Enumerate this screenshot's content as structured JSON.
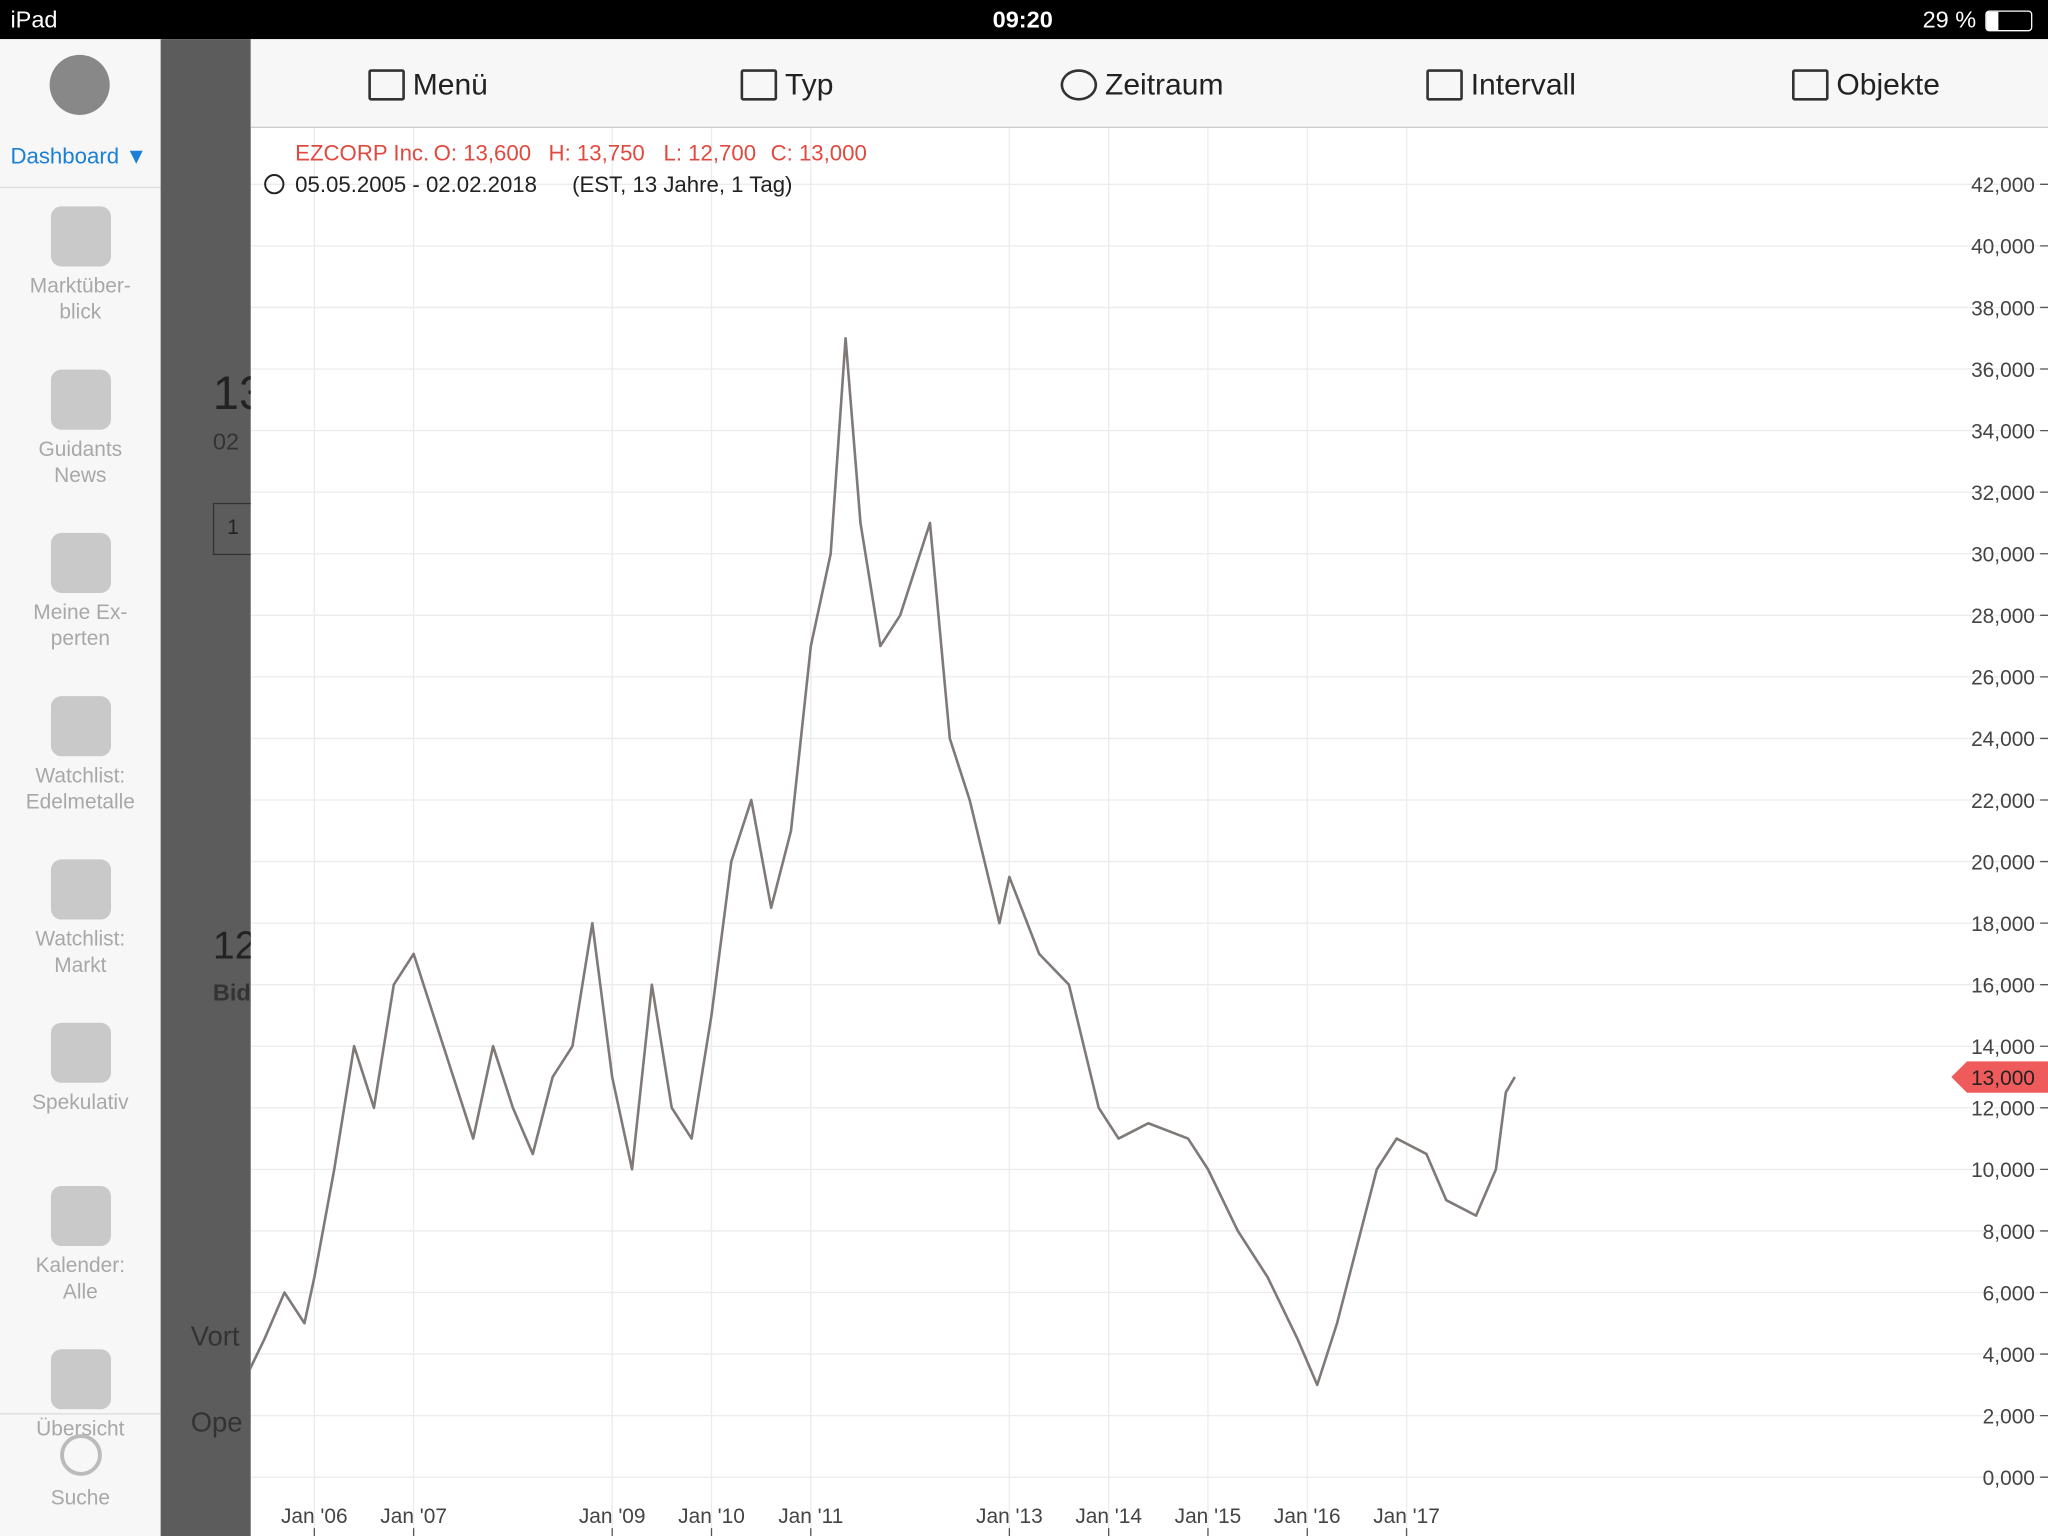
{
  "status_bar": {
    "device": "iPad",
    "time": "09:20",
    "battery": "29 %"
  },
  "sidebar": {
    "dashboard": "Dashboard",
    "items": [
      "Marktüber-\nblick",
      "Guidants\nNews",
      "Meine Ex-\nperten",
      "Watchlist:\nEdelmetalle",
      "Watchlist:\nMarkt",
      "Spekulativ",
      "Kalender:\nAlle",
      "Übersicht"
    ],
    "search": "Suche"
  },
  "background_panel": {
    "texts": [
      "13",
      "02",
      "1",
      "12",
      "Bid",
      "Vort",
      "Ope"
    ]
  },
  "toolbar": {
    "items": [
      "Menü",
      "Typ",
      "Zeitraum",
      "Intervall",
      "Objekte"
    ]
  },
  "chart_data": {
    "type": "line",
    "title": "EZCORP Inc.",
    "ohlc": [
      "O: 13,600",
      "H: 13,750",
      "L: 12,700",
      "C: 13,000"
    ],
    "range": "05.05.2005 - 02.02.2018",
    "range_detail": "(EST, 13 Jahre, 1 Tag)",
    "last_value": 13000,
    "last_label": "13,000",
    "series": [
      {
        "name": "EZCORP Inc.",
        "color": "#7f7a78",
        "x": [
          2005.35,
          2005.5,
          2005.7,
          2005.9,
          2006.0,
          2006.2,
          2006.4,
          2006.6,
          2006.8,
          2007.0,
          2007.2,
          2007.4,
          2007.6,
          2007.8,
          2008.0,
          2008.2,
          2008.4,
          2008.6,
          2008.8,
          2009.0,
          2009.2,
          2009.4,
          2009.6,
          2009.8,
          2010.0,
          2010.2,
          2010.4,
          2010.6,
          2010.8,
          2011.0,
          2011.2,
          2011.35,
          2011.5,
          2011.7,
          2011.9,
          2012.2,
          2012.4,
          2012.6,
          2012.9,
          2013.0,
          2013.3,
          2013.6,
          2013.9,
          2014.1,
          2014.4,
          2014.8,
          2015.0,
          2015.3,
          2015.6,
          2015.9,
          2016.1,
          2016.3,
          2016.5,
          2016.7,
          2016.9,
          2017.2,
          2017.4,
          2017.7,
          2017.9,
          2018.0,
          2018.09
        ],
        "values": [
          3500,
          4500,
          6000,
          5000,
          6500,
          10000,
          14000,
          12000,
          16000,
          17000,
          15000,
          13000,
          11000,
          14000,
          12000,
          10500,
          13000,
          14000,
          18000,
          13000,
          10000,
          16000,
          12000,
          11000,
          15000,
          20000,
          22000,
          18500,
          21000,
          27000,
          30000,
          37000,
          31000,
          27000,
          28000,
          31000,
          24000,
          22000,
          18000,
          19500,
          17000,
          16000,
          12000,
          11000,
          11500,
          11000,
          10000,
          8000,
          6500,
          4500,
          3000,
          5000,
          7500,
          10000,
          11000,
          10500,
          9000,
          8500,
          10000,
          12500,
          13000
        ]
      }
    ],
    "xlim": [
      2005.36,
      2023.46
    ],
    "xticks": [
      {
        "value": 2006,
        "label": "Jan '06"
      },
      {
        "value": 2007,
        "label": "Jan '07"
      },
      {
        "value": 2009,
        "label": "Jan '09"
      },
      {
        "value": 2010,
        "label": "Jan '10"
      },
      {
        "value": 2011,
        "label": "Jan '11"
      },
      {
        "value": 2013,
        "label": "Jan '13"
      },
      {
        "value": 2014,
        "label": "Jan '14"
      },
      {
        "value": 2015,
        "label": "Jan '15"
      },
      {
        "value": 2016,
        "label": "Jan '16"
      },
      {
        "value": 2017,
        "label": "Jan '17"
      }
    ],
    "ylim": [
      -1910,
      43830
    ],
    "yticks": [
      {
        "value": 0,
        "label": "0,000"
      },
      {
        "value": 2000,
        "label": "2,000"
      },
      {
        "value": 4000,
        "label": "4,000"
      },
      {
        "value": 6000,
        "label": "6,000"
      },
      {
        "value": 8000,
        "label": "8,000"
      },
      {
        "value": 10000,
        "label": "10,000"
      },
      {
        "value": 12000,
        "label": "12,000"
      },
      {
        "value": 14000,
        "label": "14,000"
      },
      {
        "value": 16000,
        "label": "16,000"
      },
      {
        "value": 18000,
        "label": "18,000"
      },
      {
        "value": 20000,
        "label": "20,000"
      },
      {
        "value": 22000,
        "label": "22,000"
      },
      {
        "value": 24000,
        "label": "24,000"
      },
      {
        "value": 26000,
        "label": "26,000"
      },
      {
        "value": 28000,
        "label": "28,000"
      },
      {
        "value": 30000,
        "label": "30,000"
      },
      {
        "value": 32000,
        "label": "32,000"
      },
      {
        "value": 34000,
        "label": "34,000"
      },
      {
        "value": 36000,
        "label": "36,000"
      },
      {
        "value": 38000,
        "label": "38,000"
      },
      {
        "value": 40000,
        "label": "40,000"
      },
      {
        "value": 42000,
        "label": "42,000"
      }
    ],
    "grid": true
  }
}
